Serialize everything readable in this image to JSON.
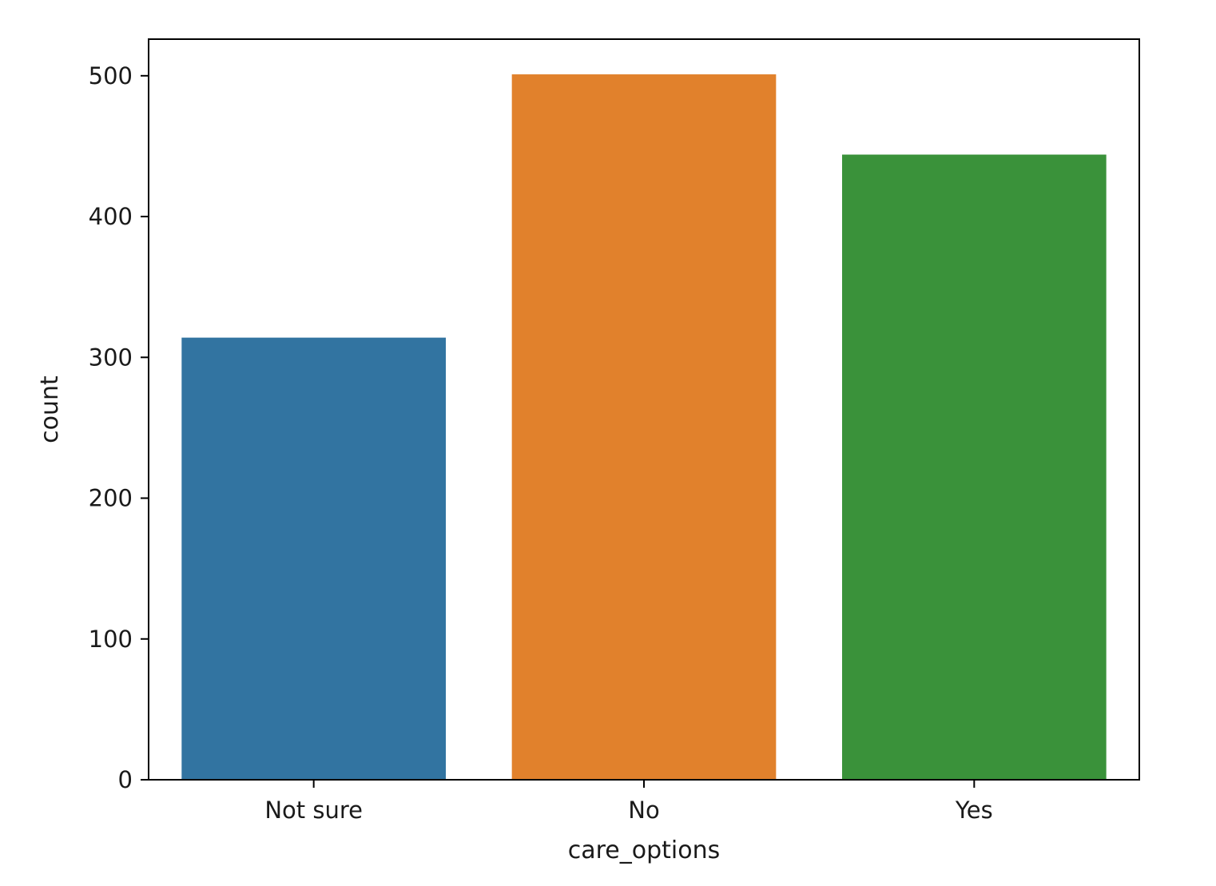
{
  "chart_data": {
    "type": "bar",
    "title": "",
    "xlabel": "care_options",
    "ylabel": "count",
    "categories": [
      "Not sure",
      "No",
      "Yes"
    ],
    "values": [
      314,
      501,
      444
    ],
    "ylim": [
      0,
      526
    ],
    "yticks": [
      0,
      100,
      200,
      300,
      400,
      500
    ],
    "grid": false,
    "legend": "none",
    "colors": [
      "#3274a1",
      "#e1812c",
      "#3a923a"
    ]
  }
}
